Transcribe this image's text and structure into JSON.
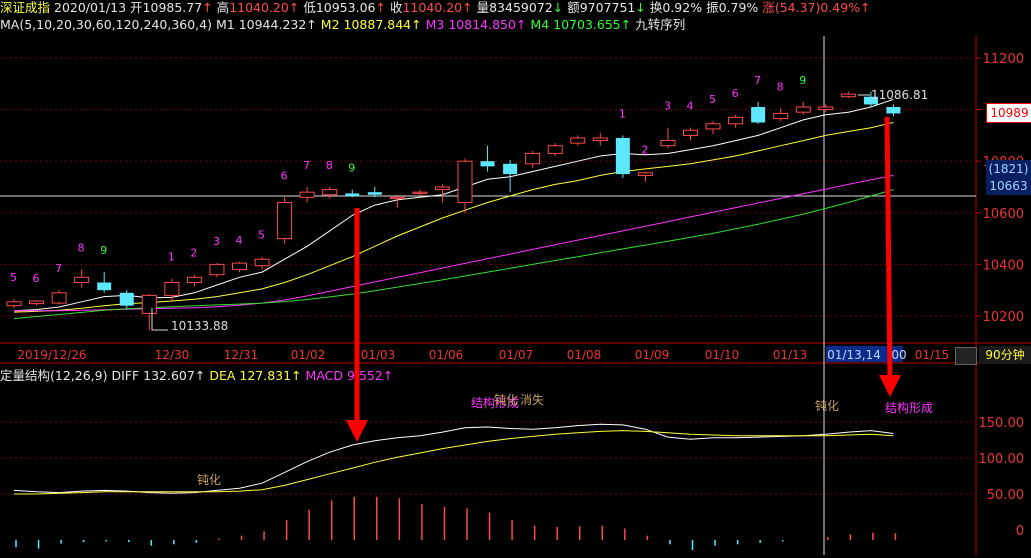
{
  "info": {
    "name": "深证成指",
    "date": "2020/01/13",
    "open_label": "开",
    "open": "10985.77",
    "high_label": "高",
    "high": "11040.20",
    "low_label": "低",
    "low": "10953.06",
    "close_label": "收",
    "close": "11040.20",
    "volume_label": "量",
    "volume": "83459072",
    "amount_label": "额",
    "amount": "9707751",
    "turnover_label": "换",
    "turnover": "0.92%",
    "amplitude_label": "振",
    "amplitude": "0.79%",
    "change_label": "涨",
    "change": "(54.37)",
    "change_pct": "0.49%"
  },
  "ma": {
    "params": "MA(5,10,20,30,60,120,240,360,4)",
    "m1_label": "M1",
    "m1": "10944.232",
    "m2_label": "M2",
    "m2": "10887.844",
    "m3_label": "M3",
    "m3": "10814.850",
    "m4_label": "M4",
    "m4": "10703.655",
    "indicator": "九转序列"
  },
  "macd": {
    "name": "定量结构(12,26,9)",
    "diff_label": "DIFF",
    "diff": "132.607",
    "dea_label": "DEA",
    "dea": "127.831",
    "macd_label": "MACD",
    "macd": "9.552",
    "ticks": [
      "150.00",
      "100.00",
      "50.00",
      "0"
    ]
  },
  "price_axis": [
    "11200",
    "10800",
    "10600",
    "10400",
    "10200"
  ],
  "price_tags": {
    "last": "10989",
    "count": "(1821)",
    "cross": "10663"
  },
  "date_axis": [
    "2019/12/26",
    "12/30",
    "12/31",
    "01/02",
    "01/03",
    "01/06",
    "01/07",
    "01/08",
    "01/09",
    "01/10",
    "01/13",
    "01/13,14",
    "00",
    "01/15"
  ],
  "timeframe": "90分钟",
  "labels": {
    "high_mark": "11086.81",
    "low_mark": "10133.88",
    "dun1": "钝化",
    "struct1": "结构形成",
    "dun2": "钝化",
    "vanish": "消失",
    "dun3": "钝化",
    "struct2": "结构形成"
  },
  "chart_data": {
    "type": "candlestick",
    "ylim": [
      10100,
      11300
    ],
    "candles": [
      {
        "o": 10240,
        "c": 10255,
        "h": 10265,
        "l": 10230,
        "up": true
      },
      {
        "o": 10248,
        "c": 10258,
        "h": 10262,
        "l": 10240,
        "up": true
      },
      {
        "o": 10250,
        "c": 10290,
        "h": 10300,
        "l": 10245,
        "up": true
      },
      {
        "o": 10330,
        "c": 10350,
        "h": 10380,
        "l": 10310,
        "up": true
      },
      {
        "o": 10330,
        "c": 10300,
        "h": 10370,
        "l": 10290,
        "up": false
      },
      {
        "o": 10290,
        "c": 10240,
        "h": 10300,
        "l": 10230,
        "up": false
      },
      {
        "o": 10210,
        "c": 10280,
        "h": 10285,
        "l": 10145,
        "up": true
      },
      {
        "o": 10280,
        "c": 10330,
        "h": 10345,
        "l": 10260,
        "up": true
      },
      {
        "o": 10330,
        "c": 10350,
        "h": 10360,
        "l": 10315,
        "up": true
      },
      {
        "o": 10360,
        "c": 10400,
        "h": 10405,
        "l": 10350,
        "up": true
      },
      {
        "o": 10380,
        "c": 10405,
        "h": 10410,
        "l": 10370,
        "up": true
      },
      {
        "o": 10395,
        "c": 10420,
        "h": 10430,
        "l": 10380,
        "up": true
      },
      {
        "o": 10500,
        "c": 10640,
        "h": 10660,
        "l": 10480,
        "up": true
      },
      {
        "o": 10660,
        "c": 10680,
        "h": 10700,
        "l": 10640,
        "up": true
      },
      {
        "o": 10670,
        "c": 10690,
        "h": 10700,
        "l": 10655,
        "up": true
      },
      {
        "o": 10675,
        "c": 10665,
        "h": 10690,
        "l": 10660,
        "up": false
      },
      {
        "o": 10680,
        "c": 10670,
        "h": 10700,
        "l": 10660,
        "up": false
      },
      {
        "o": 10655,
        "c": 10660,
        "h": 10670,
        "l": 10620,
        "up": true
      },
      {
        "o": 10675,
        "c": 10680,
        "h": 10690,
        "l": 10665,
        "up": true
      },
      {
        "o": 10690,
        "c": 10700,
        "h": 10710,
        "l": 10640,
        "up": true
      },
      {
        "o": 10640,
        "c": 10800,
        "h": 10810,
        "l": 10600,
        "up": true
      },
      {
        "o": 10800,
        "c": 10780,
        "h": 10860,
        "l": 10760,
        "up": false
      },
      {
        "o": 10790,
        "c": 10750,
        "h": 10805,
        "l": 10680,
        "up": false
      },
      {
        "o": 10790,
        "c": 10830,
        "h": 10840,
        "l": 10775,
        "up": true
      },
      {
        "o": 10830,
        "c": 10860,
        "h": 10870,
        "l": 10820,
        "up": true
      },
      {
        "o": 10870,
        "c": 10890,
        "h": 10900,
        "l": 10860,
        "up": true
      },
      {
        "o": 10880,
        "c": 10890,
        "h": 10910,
        "l": 10860,
        "up": true
      },
      {
        "o": 10890,
        "c": 10750,
        "h": 10900,
        "l": 10735,
        "up": false
      },
      {
        "o": 10745,
        "c": 10755,
        "h": 10760,
        "l": 10720,
        "up": true
      },
      {
        "o": 10860,
        "c": 10880,
        "h": 10930,
        "l": 10850,
        "up": true
      },
      {
        "o": 10900,
        "c": 10920,
        "h": 10930,
        "l": 10880,
        "up": true
      },
      {
        "o": 10925,
        "c": 10945,
        "h": 10955,
        "l": 10905,
        "up": true
      },
      {
        "o": 10945,
        "c": 10970,
        "h": 10980,
        "l": 10930,
        "up": true
      },
      {
        "o": 11010,
        "c": 10950,
        "h": 11030,
        "l": 10945,
        "up": false
      },
      {
        "o": 10965,
        "c": 10985,
        "h": 11005,
        "l": 10955,
        "up": true
      },
      {
        "o": 10990,
        "c": 11010,
        "h": 11030,
        "l": 10980,
        "up": true
      },
      {
        "o": 11010,
        "c": 11000,
        "h": 11020,
        "l": 10990,
        "up": true
      },
      {
        "o": 11050,
        "c": 11060,
        "h": 11070,
        "l": 11045,
        "up": true
      },
      {
        "o": 11050,
        "c": 11020,
        "h": 11070,
        "l": 11010,
        "up": false
      },
      {
        "o": 11010,
        "c": 10985,
        "h": 11020,
        "l": 10975,
        "up": false
      }
    ],
    "ma_series": [
      {
        "name": "M1",
        "color": "#ffffff",
        "values": [
          10220,
          10225,
          10235,
          10255,
          10275,
          10280,
          10270,
          10272,
          10290,
          10320,
          10350,
          10370,
          10420,
          10470,
          10530,
          10590,
          10630,
          10650,
          10660,
          10670,
          10700,
          10730,
          10740,
          10760,
          10780,
          10800,
          10820,
          10830,
          10825,
          10830,
          10845,
          10860,
          10880,
          10900,
          10930,
          10960,
          10980,
          10990,
          11010,
          11040
        ]
      },
      {
        "name": "M2",
        "color": "#ffff3c",
        "values": [
          10215,
          10218,
          10222,
          10230,
          10240,
          10248,
          10252,
          10258,
          10265,
          10275,
          10290,
          10305,
          10330,
          10360,
          10395,
          10430,
          10470,
          10510,
          10545,
          10580,
          10610,
          10640,
          10665,
          10690,
          10710,
          10725,
          10745,
          10760,
          10770,
          10780,
          10790,
          10805,
          10820,
          10840,
          10860,
          10880,
          10900,
          10915,
          10930,
          10950
        ]
      },
      {
        "name": "M3",
        "color": "#ff33ff",
        "values": [
          10220,
          10220,
          10220,
          10222,
          10224,
          10226,
          10228,
          10230,
          10232,
          10236,
          10242,
          10250,
          10262,
          10278,
          10296,
          10314,
          10332,
          10350,
          10368,
          10386,
          10404,
          10422,
          10440,
          10458,
          10476,
          10494,
          10512,
          10530,
          10548,
          10566,
          10584,
          10602,
          10620,
          10638,
          10656,
          10674,
          10692,
          10710,
          10728,
          10745
        ]
      },
      {
        "name": "M4",
        "color": "#33dd33",
        "values": [
          10190,
          10198,
          10206,
          10214,
          10222,
          10228,
          10232,
          10236,
          10240,
          10243,
          10246,
          10250,
          10256,
          10264,
          10274,
          10285,
          10298,
          10312,
          10326,
          10340,
          10355,
          10370,
          10385,
          10400,
          10415,
          10430,
          10445,
          10460,
          10475,
          10490,
          10505,
          10520,
          10538,
          10556,
          10575,
          10595,
          10617,
          10640,
          10665,
          10690
        ]
      }
    ],
    "seq_counts": [
      {
        "i": 0,
        "n": "5",
        "c": "#ff33ff"
      },
      {
        "i": 1,
        "n": "6",
        "c": "#ff33ff"
      },
      {
        "i": 2,
        "n": "7",
        "c": "#ff33ff"
      },
      {
        "i": 3,
        "n": "8",
        "c": "#ff33ff"
      },
      {
        "i": 4,
        "n": "9",
        "c": "#33ff33"
      },
      {
        "i": 7,
        "n": "1",
        "c": "#ff33ff"
      },
      {
        "i": 8,
        "n": "2",
        "c": "#ff33ff"
      },
      {
        "i": 9,
        "n": "3",
        "c": "#ff33ff"
      },
      {
        "i": 10,
        "n": "4",
        "c": "#ff33ff"
      },
      {
        "i": 11,
        "n": "5",
        "c": "#ff33ff"
      },
      {
        "i": 12,
        "n": "6",
        "c": "#ff33ff"
      },
      {
        "i": 13,
        "n": "7",
        "c": "#ff33ff"
      },
      {
        "i": 14,
        "n": "8",
        "c": "#ff33ff"
      },
      {
        "i": 15,
        "n": "9",
        "c": "#33ff33"
      },
      {
        "i": 27,
        "n": "1",
        "c": "#ff33ff"
      },
      {
        "i": 28,
        "n": "2",
        "c": "#ff33ff"
      },
      {
        "i": 29,
        "n": "3",
        "c": "#ff33ff"
      },
      {
        "i": 30,
        "n": "4",
        "c": "#ff33ff"
      },
      {
        "i": 31,
        "n": "5",
        "c": "#ff33ff"
      },
      {
        "i": 32,
        "n": "6",
        "c": "#ff33ff"
      },
      {
        "i": 33,
        "n": "7",
        "c": "#ff33ff"
      },
      {
        "i": 34,
        "n": "8",
        "c": "#ff33ff"
      },
      {
        "i": 35,
        "n": "9",
        "c": "#33ff33"
      }
    ],
    "macd_ylim": [
      -20,
      180
    ],
    "diff": [
      55,
      53,
      52,
      54,
      55,
      54,
      52,
      51,
      52,
      55,
      58,
      65,
      80,
      95,
      108,
      118,
      124,
      128,
      131,
      136,
      142,
      143,
      141,
      140,
      142,
      145,
      147,
      146,
      140,
      129,
      126,
      128,
      128,
      129,
      130,
      131,
      133,
      136,
      138,
      134
    ],
    "dea": [
      50,
      50,
      51,
      52,
      53,
      53,
      53,
      53,
      53,
      53,
      54,
      56,
      62,
      70,
      78,
      86,
      94,
      101,
      107,
      113,
      118,
      123,
      127,
      130,
      133,
      135,
      137,
      138,
      137,
      135,
      133,
      132,
      131,
      131,
      131,
      131,
      131,
      132,
      133,
      131
    ],
    "macd_bars": [
      -10,
      -12,
      -5,
      -3,
      -2,
      -3,
      -8,
      -6,
      -4,
      2,
      6,
      12,
      28,
      42,
      55,
      60,
      60,
      58,
      50,
      46,
      44,
      38,
      28,
      20,
      18,
      19,
      20,
      16,
      6,
      -6,
      -14,
      -8,
      -6,
      -4,
      -2,
      0,
      4,
      8,
      10,
      9.55
    ]
  }
}
